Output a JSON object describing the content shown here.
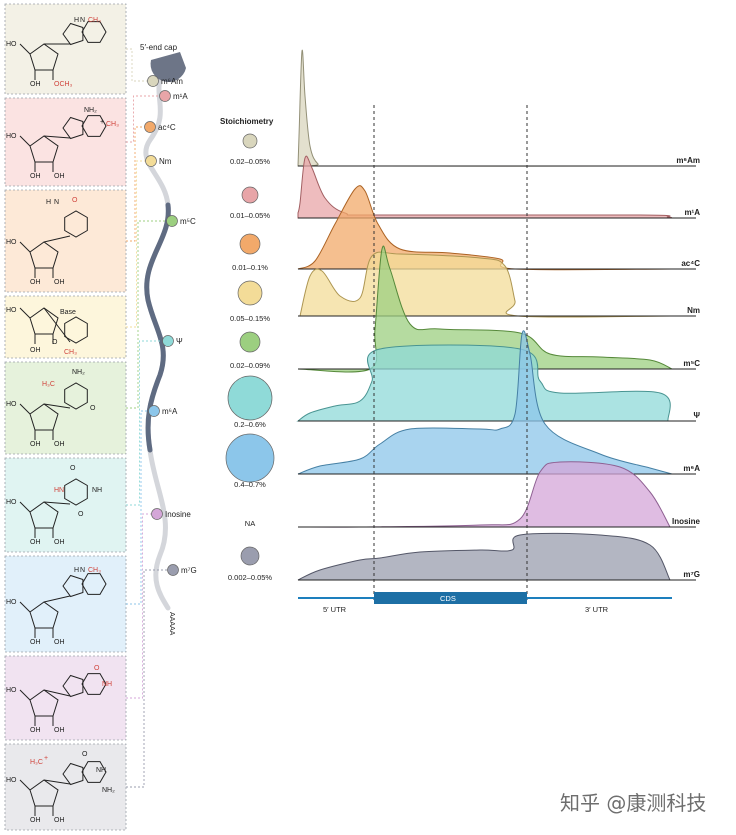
{
  "cap_label": "5′-end cap",
  "polya_label": "AAAAA",
  "watermark": "知乎 @康测科技",
  "stoichiometry_title": "Stoichiometry",
  "regions": {
    "utr5": "5′ UTR",
    "cds": "CDS",
    "utr3": "3′ UTR"
  },
  "mods": [
    {
      "id": "m6Am",
      "label": "m⁶Am",
      "color": "#d9d6bd",
      "panel_bg": "#f3f1e6",
      "stoich": "0.02–0.05%"
    },
    {
      "id": "m1A",
      "label": "m¹A",
      "color": "#e8a5a8",
      "panel_bg": "#fbe3e2",
      "stoich": "0.01–0.05%"
    },
    {
      "id": "ac4C",
      "label": "ac⁴C",
      "color": "#f2a96a",
      "panel_bg": "#fde9d7",
      "stoich": "0.01–0.1%"
    },
    {
      "id": "Nm",
      "label": "Nm",
      "color": "#f3dc98",
      "panel_bg": "#fdf6dc",
      "stoich": "0.05–0.15%"
    },
    {
      "id": "m5C",
      "label": "m⁵C",
      "color": "#9ccf80",
      "panel_bg": "#e6f2dc",
      "stoich": "0.02–0.09%"
    },
    {
      "id": "psi",
      "label": "Ψ",
      "color": "#8fdad8",
      "panel_bg": "#e0f4f2",
      "stoich": "0.2–0.6%"
    },
    {
      "id": "m6A",
      "label": "m⁶A",
      "color": "#8cc6ea",
      "panel_bg": "#e1f0fa",
      "stoich": "0.4–0.7%"
    },
    {
      "id": "Inosine",
      "label": "Inosine",
      "color": "#d4a6d8",
      "panel_bg": "#f1e3f1",
      "stoich": "NA"
    },
    {
      "id": "m7G",
      "label": "m⁷G",
      "color": "#9a9dae",
      "panel_bg": "#e9e9ec",
      "stoich": "0.002–0.05%"
    }
  ],
  "structures": {
    "m6Am": {
      "n_label": "N",
      "h_label": "H",
      "me_label": "CH₃",
      "ho_label": "HO",
      "oh_label": "OH",
      "och3_label": "OCH₃"
    },
    "m1A": {
      "nh2": "NH₂",
      "ch3": "CH₃",
      "ho": "HO",
      "oh1": "OH",
      "oh2": "OH",
      "plus": "+"
    },
    "ac4C": {
      "h": "H",
      "n": "N",
      "o": "O",
      "ho": "HO",
      "oh1": "OH",
      "oh2": "OH"
    },
    "Nm": {
      "ho": "HO",
      "base": "Base",
      "oh": "OH",
      "o": "O",
      "ch3": "CH₃"
    },
    "m5C": {
      "nh2": "NH₂",
      "h3c": "H₃C",
      "o": "O",
      "ho": "HO",
      "oh1": "OH",
      "oh2": "OH"
    },
    "psi": {
      "o1": "O",
      "o2": "O",
      "hn": "HN",
      "nh": "NH",
      "ho": "HO",
      "oh1": "OH",
      "oh2": "OH"
    },
    "m6A": {
      "h": "H",
      "n": "N",
      "ch3": "CH₃",
      "ho": "HO",
      "oh1": "OH",
      "oh2": "OH"
    },
    "Inosine": {
      "o": "O",
      "nh": "NH",
      "ho": "HO",
      "oh1": "OH",
      "oh2": "OH"
    },
    "m7G": {
      "h3c": "H₃C",
      "plus": "+",
      "o": "O",
      "nh": "NH",
      "nh2": "NH₂",
      "ho": "HO",
      "oh1": "OH",
      "oh2": "OH"
    }
  },
  "chart_data": {
    "type": "area",
    "x_regions": [
      "5′ UTR",
      "CDS",
      "3′ UTR"
    ],
    "series": [
      {
        "name": "m⁶Am",
        "peak_position": "5′ cap",
        "shape": "sharp single peak at 5′ end"
      },
      {
        "name": "m¹A",
        "peak_position": "5′ UTR",
        "shape": "peak near 5′ end, low tail"
      },
      {
        "name": "ac⁴C",
        "peak_position": "5′ UTR / start of CDS",
        "shape": "broad peak, plateau over CDS"
      },
      {
        "name": "Nm",
        "peak_position": "5′ UTR and CDS",
        "shape": "two humps, plateau through CDS"
      },
      {
        "name": "m⁵C",
        "peak_position": "start of CDS",
        "shape": "sharp peak at CDS start, plateau"
      },
      {
        "name": "Ψ",
        "peak_position": "CDS",
        "shape": "plateau over CDS, gentle 3′ tail"
      },
      {
        "name": "m⁶A",
        "peak_position": "stop codon",
        "shape": "sharp peak at CDS end"
      },
      {
        "name": "Inosine",
        "peak_position": "3′ UTR",
        "shape": "rises after CDS end"
      },
      {
        "name": "m⁷G",
        "peak_position": "CDS and 3′ UTR",
        "shape": "step-up across CDS into 3′ UTR"
      }
    ]
  }
}
